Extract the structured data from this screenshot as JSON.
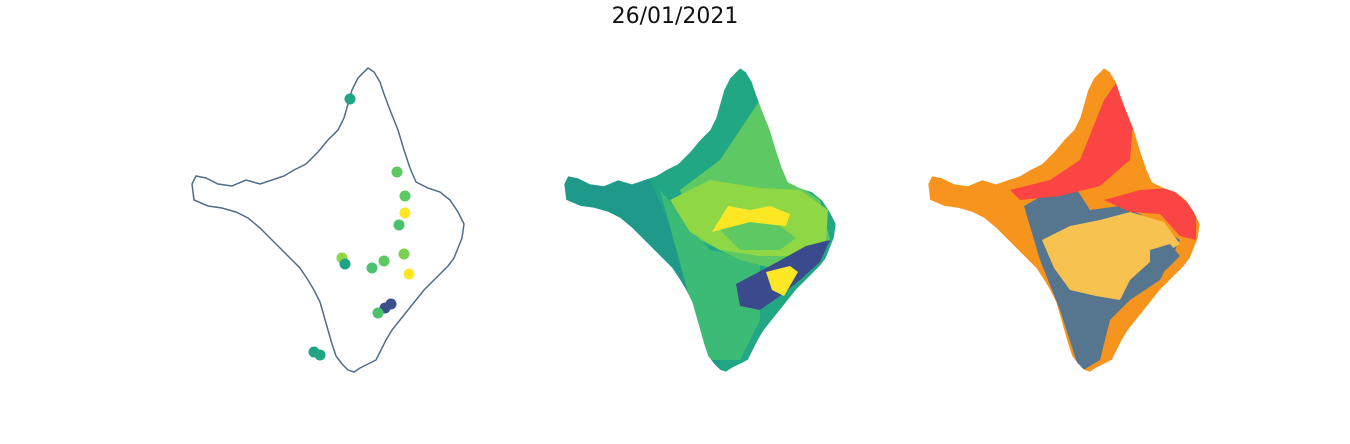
{
  "title": "26/01/2021",
  "colors": {
    "outline": "#4f6d8a",
    "background": "#ffffff"
  },
  "panels": [
    {
      "kind": "point-map",
      "points": [
        {
          "color": "#21a585"
        },
        {
          "color": "#5ec962"
        },
        {
          "color": "#5ec962"
        },
        {
          "color": "#fde725"
        },
        {
          "color": "#4ac16d"
        },
        {
          "color": "#8fd744"
        },
        {
          "color": "#20a386"
        },
        {
          "color": "#5ec962"
        },
        {
          "color": "#4ac16d"
        },
        {
          "color": "#7ad151"
        },
        {
          "color": "#fde725"
        },
        {
          "color": "#3b518b"
        },
        {
          "color": "#3b518b"
        },
        {
          "color": "#4ac16d"
        },
        {
          "color": "#20a386"
        },
        {
          "color": "#21a585"
        }
      ]
    },
    {
      "kind": "choropleth",
      "palette": [
        "#22a784",
        "#1f9a8a",
        "#3bbb75",
        "#5ec962",
        "#8fd744",
        "#fde725",
        "#3b4a8c"
      ]
    },
    {
      "kind": "choropleth",
      "palette": [
        "#fb4444",
        "#f7941d",
        "#56758f",
        "#f8c250"
      ]
    }
  ]
}
